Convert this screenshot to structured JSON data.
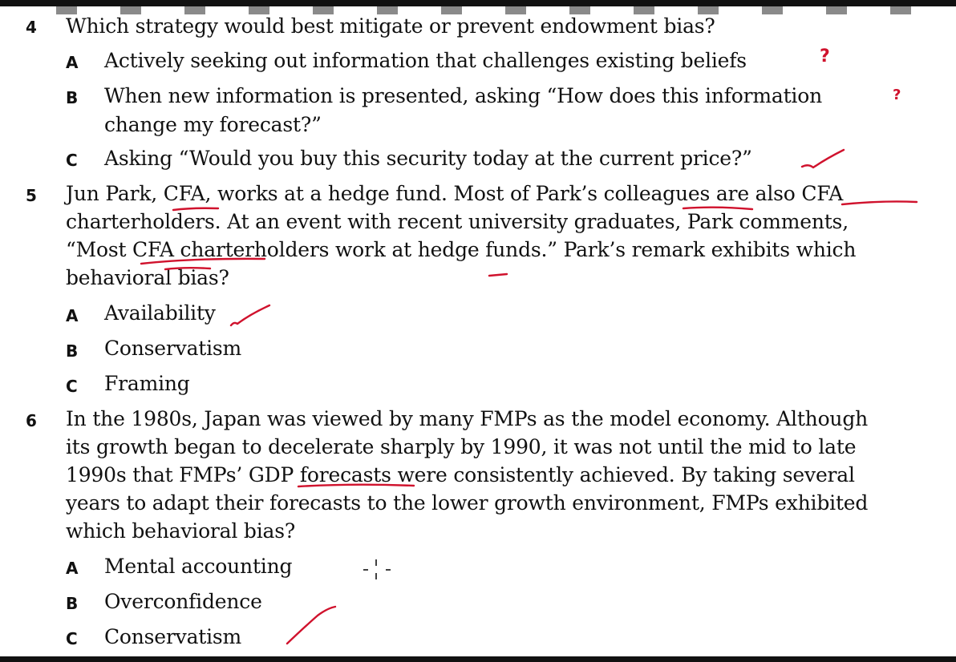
{
  "questions": [
    {
      "number": "4",
      "stem": [
        "Which strategy would best mitigate or prevent endowment bias?"
      ],
      "options": [
        {
          "letter": "A",
          "lines": [
            "Actively seeking out information that challenges existing beliefs"
          ]
        },
        {
          "letter": "B",
          "lines": [
            "When new information is presented, asking “How does this information",
            "change my forecast?”"
          ]
        },
        {
          "letter": "C",
          "lines": [
            "Asking “Would you buy this security today at the current price?”"
          ]
        }
      ]
    },
    {
      "number": "5",
      "stem": [
        "Jun Park, CFA, works at a hedge fund. Most of Park’s colleagues are also CFA",
        "charterholders. At an event with recent university graduates, Park comments,",
        "“Most CFA charterholders work at hedge funds.” Park’s remark exhibits which",
        "behavioral bias?"
      ],
      "options": [
        {
          "letter": "A",
          "lines": [
            "Availability"
          ]
        },
        {
          "letter": "B",
          "lines": [
            "Conservatism"
          ]
        },
        {
          "letter": "C",
          "lines": [
            "Framing"
          ]
        }
      ]
    },
    {
      "number": "6",
      "stem": [
        "In the 1980s, Japan was viewed by many FMPs as the model economy. Although",
        "its growth began to decelerate sharply by 1990, it was not until the mid to late",
        "1990s that FMPs’ GDP forecasts were consistently achieved. By taking several",
        "years to adapt their forecasts to the lower growth environment, FMPs exhibited",
        "which behavioral bias?"
      ],
      "options": [
        {
          "letter": "A",
          "lines": [
            "Mental accounting"
          ]
        },
        {
          "letter": "B",
          "lines": [
            "Overconfidence"
          ]
        },
        {
          "letter": "C",
          "lines": [
            "Conservatism"
          ]
        }
      ]
    }
  ],
  "annotations": {
    "ink_color": "#d0122d",
    "question_mark_glyph": "?",
    "checkmarks": [
      "q4-option-c",
      "q5-option-a",
      "q6-option-c"
    ]
  }
}
